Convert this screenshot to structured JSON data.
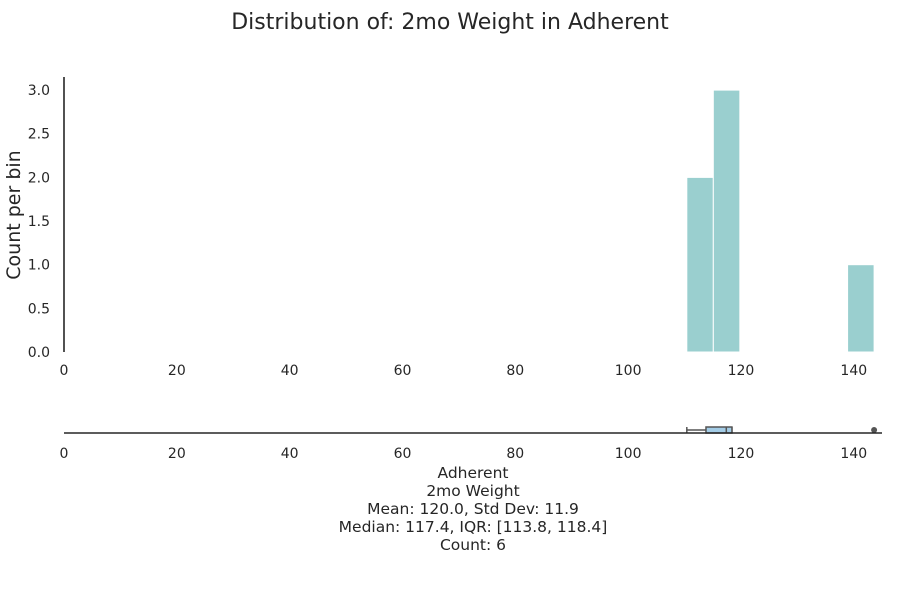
{
  "chart_data": {
    "type": "bar",
    "title": "Distribution of: 2mo Weight in Adherent",
    "ylabel": "Count per bin",
    "xlim": [
      0,
      145
    ],
    "ylim": [
      0,
      3.15
    ],
    "x_ticks": [
      0,
      20,
      40,
      60,
      80,
      100,
      120,
      140
    ],
    "y_ticks": [
      "0.0",
      "0.5",
      "1.0",
      "1.5",
      "2.0",
      "2.5",
      "3.0"
    ],
    "bins": [
      {
        "x0": 110.4,
        "x1": 115.1,
        "count": 2
      },
      {
        "x0": 115.1,
        "x1": 119.8,
        "count": 3
      },
      {
        "x0": 138.9,
        "x1": 143.6,
        "count": 1
      }
    ],
    "bar_color": "#9ACFCF",
    "boxplot": {
      "whisker_low": 110.4,
      "q1": 113.8,
      "median": 117.4,
      "q3": 118.4,
      "whisker_high": 118.4,
      "outliers": [
        143.6
      ],
      "box_color": "#A3CCE6"
    },
    "caption": [
      "Adherent",
      "2mo Weight",
      "Mean: 120.0, Std Dev: 11.9",
      "Median: 117.4, IQR: [113.8, 118.4]",
      "Count: 6"
    ]
  }
}
